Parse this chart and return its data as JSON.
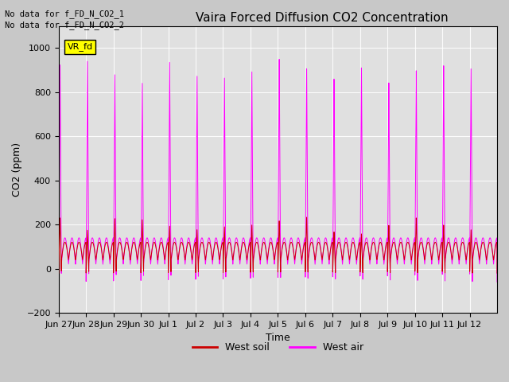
{
  "title": "Vaira Forced Diffusion CO2 Concentration",
  "xlabel": "Time",
  "ylabel": "CO2 (ppm)",
  "ylim": [
    -200,
    1100
  ],
  "yticks": [
    -200,
    0,
    200,
    400,
    600,
    800,
    1000
  ],
  "fig_bg_color": "#c8c8c8",
  "plot_bg_color": "#e0e0e0",
  "magenta_color": "#ff00ff",
  "red_color": "#cc0000",
  "legend_entries": [
    "West soil",
    "West air"
  ],
  "legend_colors": [
    "#cc0000",
    "#ff00ff"
  ],
  "annotation_text": [
    "No data for f_FD_N_CO2_1",
    "No data for f_FD_N_CO2_2"
  ],
  "legend_box_label": "VR_fd",
  "tick_labels": [
    "Jun 27",
    "Jun 28",
    "Jun 29",
    "Jun 30",
    "Jul 1",
    "Jul 2",
    "Jul 3",
    "Jul 4",
    "Jul 5",
    "Jul 6",
    "Jul 7",
    "Jul 8",
    "Jul 9",
    "Jul 10",
    "Jul 11",
    "Jul 12"
  ],
  "title_fontsize": 11,
  "label_fontsize": 9,
  "tick_fontsize": 8
}
